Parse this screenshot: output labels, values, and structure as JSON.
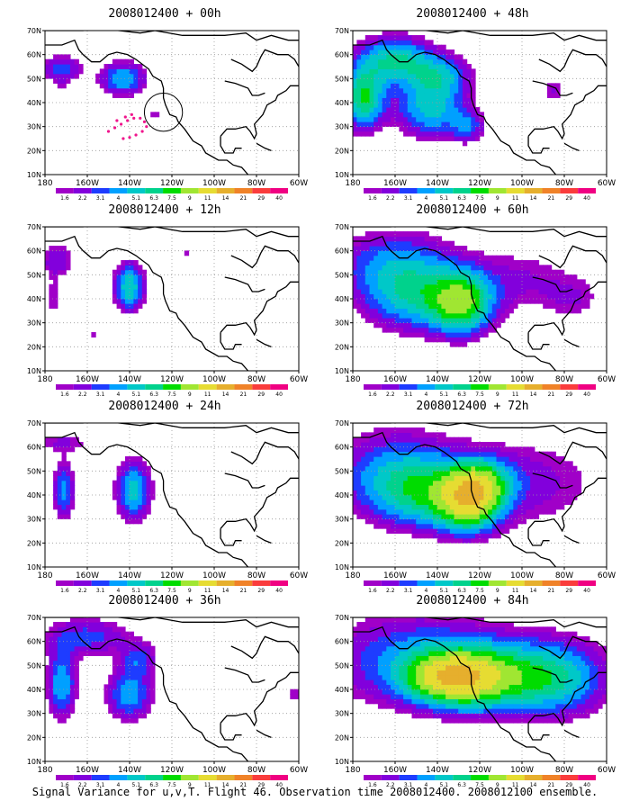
{
  "caption": "Signal Variance for u,v,T. Flight 46. Observation time 2008012400. 2008012100 ensemble.",
  "chart_data": [
    {
      "type": "heatmap",
      "title": "2008012400 + 00h",
      "x_ticks": [
        "180",
        "160W",
        "140W",
        "120W",
        "100W",
        "80W",
        "60W"
      ],
      "y_ticks": [
        "10N",
        "20N",
        "30N",
        "40N",
        "50N",
        "60N",
        "70N"
      ],
      "xlim": [
        -180,
        -60
      ],
      "ylim": [
        10,
        70
      ],
      "grid": true,
      "levels": [
        "1.6",
        "2.2",
        "3.1",
        "4",
        "5.1",
        "6.3",
        "7.5",
        "9",
        "11",
        "14",
        "21",
        "29",
        "40"
      ],
      "blobs": [
        {
          "lon": -172,
          "lat": 54,
          "sx": 7,
          "sy": 4,
          "peak": 4
        },
        {
          "lon": -143,
          "lat": 50,
          "sx": 8,
          "sy": 5,
          "peak": 5
        },
        {
          "lon": -172,
          "lat": 46,
          "sx": 2,
          "sy": 2,
          "peak": 1.6
        },
        {
          "lon": -164,
          "lat": 34,
          "sx": 2.5,
          "sy": 2,
          "peak": 1.8
        },
        {
          "lon": -128,
          "lat": 35,
          "sx": 2.5,
          "sy": 2,
          "peak": 1.8
        }
      ],
      "obs_points": [
        {
          "lon": -150,
          "lat": 28
        },
        {
          "lon": -147,
          "lat": 29.5
        },
        {
          "lon": -144,
          "lat": 31
        },
        {
          "lon": -141,
          "lat": 32.5
        },
        {
          "lon": -138,
          "lat": 33.5
        },
        {
          "lon": -135,
          "lat": 33.5
        },
        {
          "lon": -133,
          "lat": 32
        },
        {
          "lon": -132,
          "lat": 30
        },
        {
          "lon": -134,
          "lat": 28
        },
        {
          "lon": -137,
          "lat": 26.5
        },
        {
          "lon": -140,
          "lat": 25.5
        },
        {
          "lon": -143,
          "lat": 25
        },
        {
          "lon": -139,
          "lat": 35
        },
        {
          "lon": -142,
          "lat": 34
        },
        {
          "lon": -146,
          "lat": 32.5
        }
      ],
      "circle": {
        "lon": -124,
        "lat": 36,
        "r": 9
      }
    },
    {
      "type": "heatmap",
      "title": "2008012400 + 48h",
      "x_ticks": [
        "180",
        "160W",
        "140W",
        "120W",
        "100W",
        "80W",
        "60W"
      ],
      "y_ticks": [
        "10N",
        "20N",
        "30N",
        "40N",
        "50N",
        "60N",
        "70N"
      ],
      "xlim": [
        -180,
        -60
      ],
      "ylim": [
        10,
        70
      ],
      "grid": true,
      "levels": [
        "1.6",
        "2.2",
        "3.1",
        "4",
        "5.1",
        "6.3",
        "7.5",
        "9",
        "11",
        "14",
        "21",
        "29",
        "40"
      ],
      "blobs": [
        {
          "lon": -160,
          "lat": 58,
          "sx": 12,
          "sy": 7,
          "peak": 6.3
        },
        {
          "lon": -175,
          "lat": 42,
          "sx": 7,
          "sy": 9,
          "peak": 7.5
        },
        {
          "lon": -143,
          "lat": 38,
          "sx": 12,
          "sy": 9,
          "peak": 5.5
        },
        {
          "lon": -138,
          "lat": 52,
          "sx": 10,
          "sy": 6,
          "peak": 4
        },
        {
          "lon": -125,
          "lat": 30,
          "sx": 6,
          "sy": 5,
          "peak": 3
        },
        {
          "lon": -85,
          "lat": 45,
          "sx": 5,
          "sy": 5,
          "peak": 2.2
        }
      ],
      "obs_points": []
    },
    {
      "type": "heatmap",
      "title": "2008012400 + 12h",
      "x_ticks": [
        "180",
        "160W",
        "140W",
        "120W",
        "100W",
        "80W",
        "60W"
      ],
      "y_ticks": [
        "10N",
        "20N",
        "30N",
        "40N",
        "50N",
        "60N",
        "70N"
      ],
      "xlim": [
        -180,
        -60
      ],
      "ylim": [
        10,
        70
      ],
      "grid": true,
      "levels": [
        "1.6",
        "2.2",
        "3.1",
        "4",
        "5.1",
        "6.3",
        "7.5",
        "9",
        "11",
        "14",
        "21",
        "29",
        "40"
      ],
      "blobs": [
        {
          "lon": -174,
          "lat": 56,
          "sx": 6,
          "sy": 5,
          "peak": 3.1
        },
        {
          "lon": -176,
          "lat": 40,
          "sx": 3,
          "sy": 6,
          "peak": 2.2
        },
        {
          "lon": -140,
          "lat": 45,
          "sx": 5,
          "sy": 7,
          "peak": 6.3
        },
        {
          "lon": -113,
          "lat": 59,
          "sx": 2,
          "sy": 2,
          "peak": 1.8
        },
        {
          "lon": -157,
          "lat": 25,
          "sx": 1.5,
          "sy": 1.5,
          "peak": 1.6
        }
      ],
      "obs_points": []
    },
    {
      "type": "heatmap",
      "title": "2008012400 + 60h",
      "x_ticks": [
        "180",
        "160W",
        "140W",
        "120W",
        "100W",
        "80W",
        "60W"
      ],
      "y_ticks": [
        "10N",
        "20N",
        "30N",
        "40N",
        "50N",
        "60N",
        "70N"
      ],
      "xlim": [
        -180,
        -60
      ],
      "ylim": [
        10,
        70
      ],
      "grid": true,
      "levels": [
        "1.6",
        "2.2",
        "3.1",
        "4",
        "5.1",
        "6.3",
        "7.5",
        "9",
        "11",
        "14",
        "21",
        "29",
        "40"
      ],
      "blobs": [
        {
          "lon": -160,
          "lat": 55,
          "sx": 20,
          "sy": 10,
          "peak": 4
        },
        {
          "lon": -150,
          "lat": 40,
          "sx": 18,
          "sy": 10,
          "peak": 5.1
        },
        {
          "lon": -128,
          "lat": 38,
          "sx": 10,
          "sy": 9,
          "peak": 7.5
        },
        {
          "lon": -100,
          "lat": 48,
          "sx": 18,
          "sy": 10,
          "peak": 2.2
        },
        {
          "lon": -75,
          "lat": 40,
          "sx": 10,
          "sy": 7,
          "peak": 1.8
        }
      ],
      "obs_points": []
    },
    {
      "type": "heatmap",
      "title": "2008012400 + 24h",
      "x_ticks": [
        "180",
        "160W",
        "140W",
        "120W",
        "100W",
        "80W",
        "60W"
      ],
      "y_ticks": [
        "10N",
        "20N",
        "30N",
        "40N",
        "50N",
        "60N",
        "70N"
      ],
      "xlim": [
        -180,
        -60
      ],
      "ylim": [
        10,
        70
      ],
      "grid": true,
      "levels": [
        "1.6",
        "2.2",
        "3.1",
        "4",
        "5.1",
        "6.3",
        "7.5",
        "9",
        "11",
        "14",
        "21",
        "29",
        "40"
      ],
      "blobs": [
        {
          "lon": -172,
          "lat": 62,
          "sx": 12,
          "sy": 3,
          "peak": 2.2
        },
        {
          "lon": -171,
          "lat": 42,
          "sx": 3.5,
          "sy": 9,
          "peak": 4.5
        },
        {
          "lon": -138,
          "lat": 42,
          "sx": 6,
          "sy": 9,
          "peak": 5.5
        },
        {
          "lon": -114,
          "lat": 55,
          "sx": 2,
          "sy": 1.5,
          "peak": 1.7
        },
        {
          "lon": -113,
          "lat": 36,
          "sx": 1.5,
          "sy": 1.5,
          "peak": 1.7
        }
      ],
      "obs_points": []
    },
    {
      "type": "heatmap",
      "title": "2008012400 + 72h",
      "x_ticks": [
        "180",
        "160W",
        "140W",
        "120W",
        "100W",
        "80W",
        "60W"
      ],
      "y_ticks": [
        "10N",
        "20N",
        "30N",
        "40N",
        "50N",
        "60N",
        "70N"
      ],
      "xlim": [
        -180,
        -60
      ],
      "ylim": [
        10,
        70
      ],
      "grid": true,
      "levels": [
        "1.6",
        "2.2",
        "3.1",
        "4",
        "5.1",
        "6.3",
        "7.5",
        "9",
        "11",
        "14",
        "21",
        "29",
        "40"
      ],
      "blobs": [
        {
          "lon": -160,
          "lat": 50,
          "sx": 22,
          "sy": 13,
          "peak": 4
        },
        {
          "lon": -145,
          "lat": 40,
          "sx": 18,
          "sy": 10,
          "peak": 5
        },
        {
          "lon": -125,
          "lat": 36,
          "sx": 10,
          "sy": 8,
          "peak": 8
        },
        {
          "lon": -120,
          "lat": 45,
          "sx": 10,
          "sy": 7,
          "peak": 6.3
        },
        {
          "lon": -95,
          "lat": 45,
          "sx": 25,
          "sy": 14,
          "peak": 2.5
        }
      ],
      "obs_points": []
    },
    {
      "type": "heatmap",
      "title": "2008012400 + 36h",
      "x_ticks": [
        "180",
        "160W",
        "140W",
        "120W",
        "100W",
        "80W",
        "60W"
      ],
      "y_ticks": [
        "10N",
        "20N",
        "30N",
        "40N",
        "50N",
        "60N",
        "70N"
      ],
      "xlim": [
        -180,
        -60
      ],
      "ylim": [
        10,
        70
      ],
      "grid": true,
      "levels": [
        "1.6",
        "2.2",
        "3.1",
        "4",
        "5.1",
        "6.3",
        "7.5",
        "9",
        "11",
        "14",
        "21",
        "29",
        "40"
      ],
      "blobs": [
        {
          "lon": -160,
          "lat": 62,
          "sx": 15,
          "sy": 6,
          "peak": 3.5
        },
        {
          "lon": -172,
          "lat": 42,
          "sx": 5,
          "sy": 10,
          "peak": 5.1
        },
        {
          "lon": -140,
          "lat": 38,
          "sx": 8,
          "sy": 8,
          "peak": 4.8
        },
        {
          "lon": -135,
          "lat": 53,
          "sx": 6,
          "sy": 5,
          "peak": 3
        },
        {
          "lon": -110,
          "lat": 53,
          "sx": 2,
          "sy": 2,
          "peak": 1.8
        },
        {
          "lon": -62,
          "lat": 38,
          "sx": 4,
          "sy": 5,
          "peak": 1.8
        }
      ],
      "obs_points": []
    },
    {
      "type": "heatmap",
      "title": "2008012400 + 84h",
      "x_ticks": [
        "180",
        "160W",
        "140W",
        "120W",
        "100W",
        "80W",
        "60W"
      ],
      "y_ticks": [
        "10N",
        "20N",
        "30N",
        "40N",
        "50N",
        "60N",
        "70N"
      ],
      "xlim": [
        -180,
        -60
      ],
      "ylim": [
        10,
        70
      ],
      "grid": true,
      "levels": [
        "1.6",
        "2.2",
        "3.1",
        "4",
        "5.1",
        "6.3",
        "7.5",
        "9",
        "11",
        "14",
        "21",
        "29",
        "40"
      ],
      "blobs": [
        {
          "lon": -150,
          "lat": 52,
          "sx": 30,
          "sy": 14,
          "peak": 4.5
        },
        {
          "lon": -140,
          "lat": 45,
          "sx": 12,
          "sy": 7,
          "peak": 6
        },
        {
          "lon": -125,
          "lat": 45,
          "sx": 12,
          "sy": 8,
          "peak": 6.3
        },
        {
          "lon": -105,
          "lat": 45,
          "sx": 20,
          "sy": 10,
          "peak": 5.5
        },
        {
          "lon": -80,
          "lat": 45,
          "sx": 18,
          "sy": 12,
          "peak": 3.8
        }
      ],
      "obs_points": []
    }
  ],
  "colorbar": {
    "colors": [
      "#a000c8",
      "#8200dc",
      "#1e3cff",
      "#00a0ff",
      "#00c8c8",
      "#00d28c",
      "#00dc00",
      "#a0e632",
      "#e6dc32",
      "#e6af2d",
      "#f08228",
      "#fa3c3c",
      "#f00082"
    ]
  }
}
